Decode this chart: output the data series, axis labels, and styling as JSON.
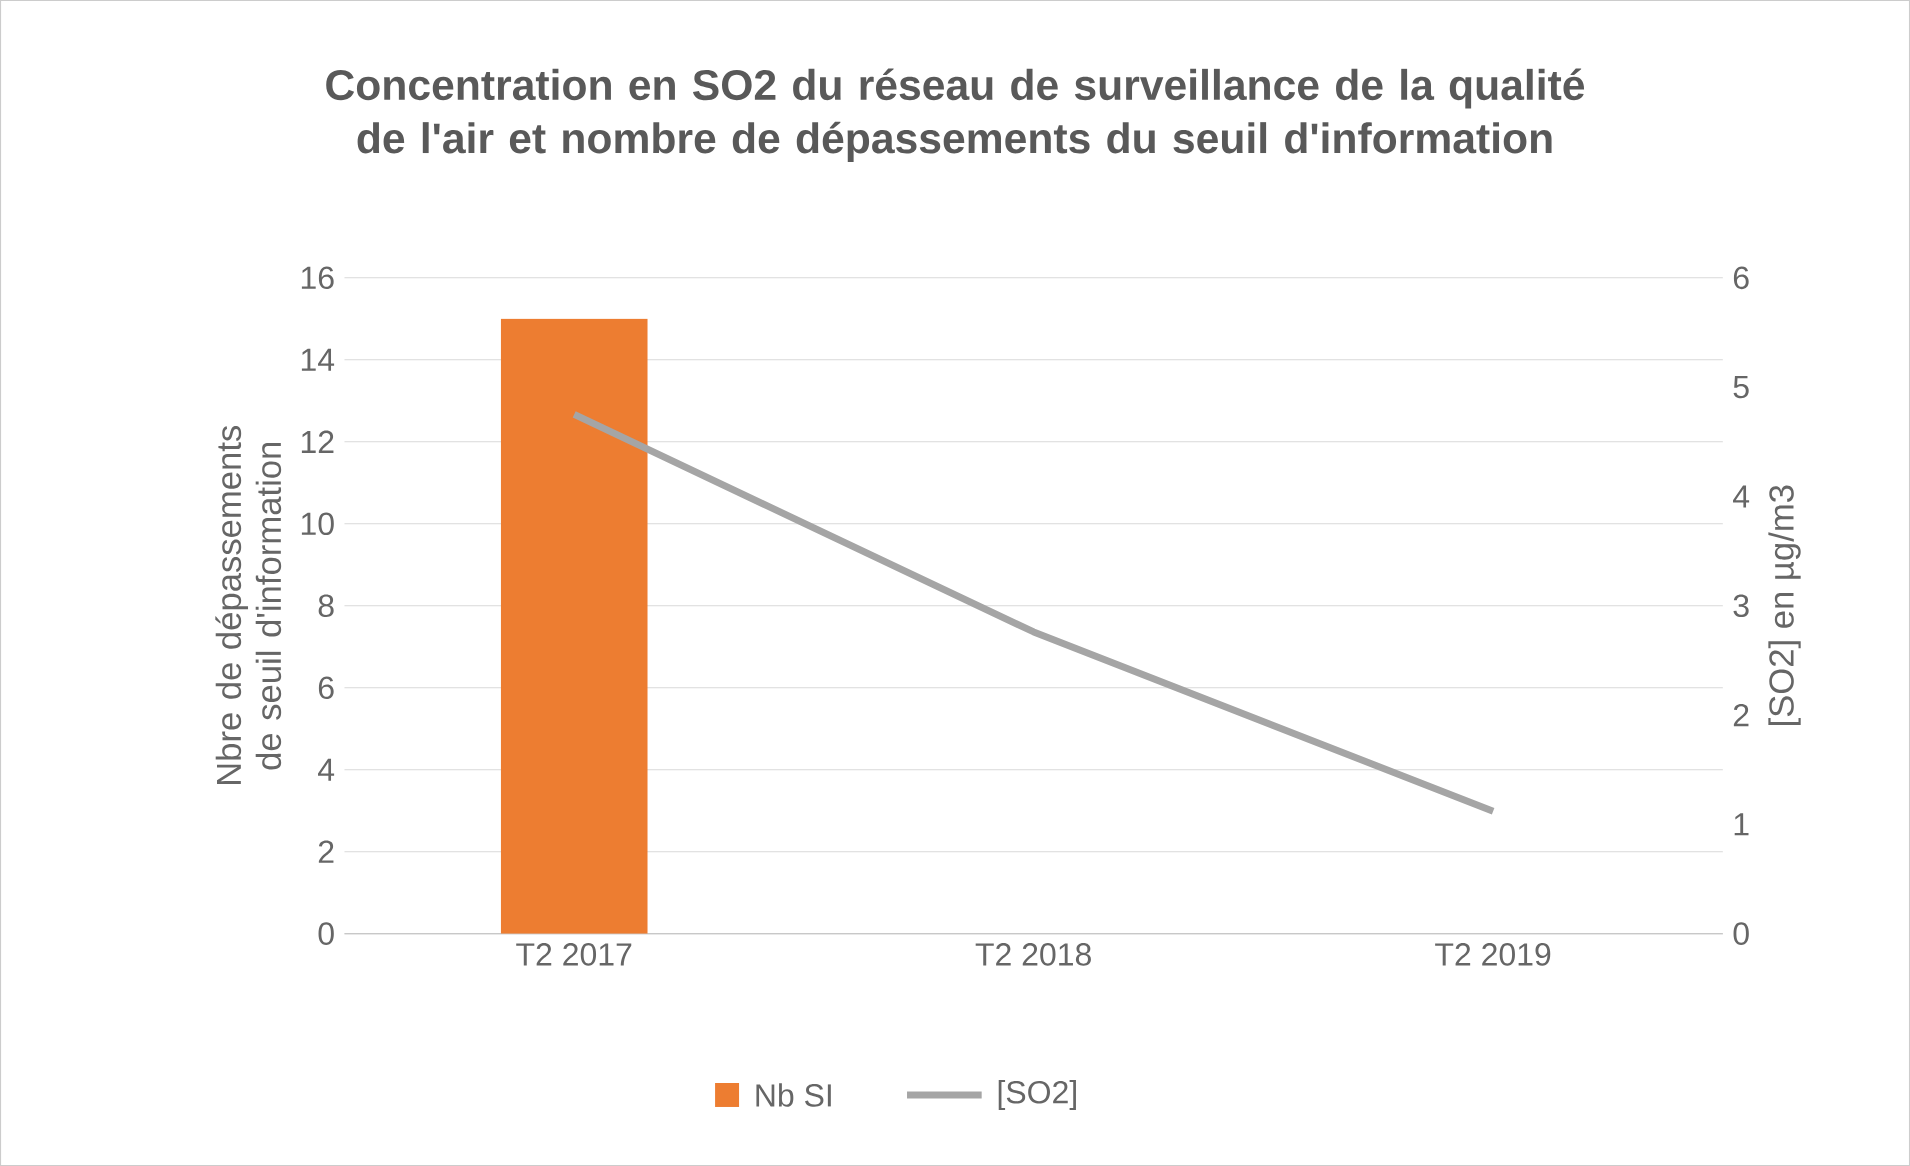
{
  "chart_data": {
    "type": "bar",
    "title": "Concentration en SO2 du réseau de surveillance de la qualité de l'air  et nombre de dépassements du seuil d'information",
    "categories": [
      "T2 2017",
      "T2 2018",
      "T2 2019"
    ],
    "series": [
      {
        "name": "Nb SI",
        "color": "#ed7d31",
        "values": [
          15,
          0,
          0
        ]
      },
      {
        "name": "[SO2]",
        "type": "line",
        "axis": "y2",
        "color": "#a5a5a5",
        "values": [
          4.75,
          2.76,
          1.12
        ]
      }
    ],
    "ylabel": "Nbre de dépassements de seuil d'information",
    "y2label": "[SO2] en µg/m3",
    "ylim": [
      0,
      16
    ],
    "yticks": [
      0,
      2,
      4,
      6,
      8,
      10,
      12,
      14,
      16
    ],
    "y2lim": [
      0,
      6
    ],
    "y2ticks": [
      0,
      1,
      2,
      3,
      4,
      5,
      6
    ],
    "grid": "y",
    "legend": "bottom",
    "marker": "none"
  }
}
